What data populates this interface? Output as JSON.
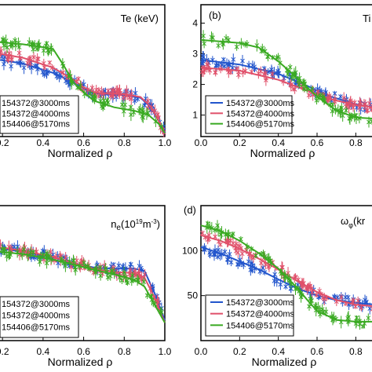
{
  "figure": {
    "xlabel": "Normalized ρ",
    "legend_entries": [
      "154372@3000ms",
      "154372@4000ms",
      "154406@5170ms"
    ],
    "colors": {
      "s3000": "#2255cc",
      "s4000": "#e0506a",
      "s5170": "#3aaa22"
    }
  },
  "panels": [
    {
      "id": "a",
      "title": "Te (keV)",
      "tag": "",
      "xticks": [
        "0.2",
        "0.4",
        "0.6",
        "0.8",
        "1.0"
      ],
      "yticks": [],
      "xlabel": "Normalized ρ"
    },
    {
      "id": "b",
      "title": "Ti",
      "tag": "(b)",
      "xticks": [
        "0.0",
        "0.2",
        "0.4",
        "0.6",
        "0.8"
      ],
      "yticks": [
        "1",
        "2",
        "3",
        "4"
      ],
      "xlabel": "Normalized ρ"
    },
    {
      "id": "c",
      "title": "n",
      "title_sub": "e",
      "title_unit": "(10",
      "title_exp": "19",
      "title_unit2": "m",
      "title_exp2": "-3",
      "title_end": ")",
      "tag": "",
      "xticks": [
        "0.2",
        "0.4",
        "0.6",
        "0.8",
        "1.0"
      ],
      "yticks": [],
      "xlabel": "Normalized ρ"
    },
    {
      "id": "d",
      "title": "ω",
      "title_sub": "φ",
      "title_unit": "(kr",
      "tag": "(d)",
      "xticks": [
        "0.0",
        "0.2",
        "0.4",
        "0.6",
        "0.8"
      ],
      "yticks": [
        "50",
        "100"
      ],
      "xlabel": "Normalized ρ"
    }
  ],
  "chart_data": [
    {
      "type": "scatter",
      "title": "Te (keV)",
      "xlabel": "Normalized ρ",
      "ylabel": "",
      "xlim": [
        0.18,
        1.0
      ],
      "ylim": [
        0,
        4.6
      ],
      "series": [
        {
          "name": "154372@3000ms",
          "fit": [
            [
              0.18,
              2.68
            ],
            [
              0.3,
              2.55
            ],
            [
              0.45,
              2.22
            ],
            [
              0.55,
              1.88
            ],
            [
              0.6,
              1.68
            ],
            [
              0.65,
              1.52
            ],
            [
              0.7,
              1.48
            ],
            [
              0.8,
              1.45
            ],
            [
              0.88,
              1.35
            ],
            [
              0.93,
              1.05
            ],
            [
              0.97,
              0.55
            ],
            [
              1.0,
              0.1
            ]
          ]
        },
        {
          "name": "154372@4000ms",
          "fit": [
            [
              0.18,
              2.9
            ],
            [
              0.3,
              2.75
            ],
            [
              0.45,
              2.4
            ],
            [
              0.55,
              1.98
            ],
            [
              0.6,
              1.72
            ],
            [
              0.65,
              1.55
            ],
            [
              0.7,
              1.5
            ],
            [
              0.8,
              1.48
            ],
            [
              0.88,
              1.38
            ],
            [
              0.93,
              1.05
            ],
            [
              0.97,
              0.55
            ],
            [
              1.0,
              0.1
            ]
          ]
        },
        {
          "name": "154406@5170ms",
          "fit": [
            [
              0.18,
              3.3
            ],
            [
              0.3,
              3.22
            ],
            [
              0.4,
              3.12
            ],
            [
              0.45,
              3.05
            ],
            [
              0.5,
              2.5
            ],
            [
              0.55,
              1.88
            ],
            [
              0.6,
              1.55
            ],
            [
              0.65,
              1.25
            ],
            [
              0.75,
              1.02
            ],
            [
              0.85,
              0.9
            ],
            [
              0.92,
              0.75
            ],
            [
              0.97,
              0.45
            ],
            [
              1.0,
              0.12
            ]
          ]
        }
      ]
    },
    {
      "type": "scatter",
      "title": "Ti",
      "xlabel": "Normalized ρ",
      "ylabel": "",
      "xlim": [
        0.0,
        0.9
      ],
      "ylim": [
        0.3,
        4.6
      ],
      "series": [
        {
          "name": "154372@3000ms",
          "fit": [
            [
              0.0,
              2.8
            ],
            [
              0.2,
              2.65
            ],
            [
              0.4,
              2.35
            ],
            [
              0.55,
              1.95
            ],
            [
              0.65,
              1.65
            ],
            [
              0.8,
              1.35
            ],
            [
              0.9,
              1.25
            ]
          ]
        },
        {
          "name": "154372@4000ms",
          "fit": [
            [
              0.0,
              2.55
            ],
            [
              0.2,
              2.45
            ],
            [
              0.4,
              2.15
            ],
            [
              0.55,
              1.8
            ],
            [
              0.65,
              1.55
            ],
            [
              0.8,
              1.33
            ],
            [
              0.9,
              1.25
            ]
          ]
        },
        {
          "name": "154406@5170ms",
          "fit": [
            [
              0.0,
              3.45
            ],
            [
              0.2,
              3.35
            ],
            [
              0.3,
              3.2
            ],
            [
              0.4,
              2.75
            ],
            [
              0.5,
              2.2
            ],
            [
              0.6,
              1.6
            ],
            [
              0.7,
              1.15
            ],
            [
              0.8,
              0.92
            ],
            [
              0.9,
              0.88
            ]
          ]
        }
      ]
    },
    {
      "type": "scatter",
      "title": "ne(10^19 m^-3)",
      "xlabel": "Normalized ρ",
      "ylabel": "",
      "xlim": [
        0.18,
        1.0
      ],
      "ylim": [
        0,
        6.0
      ],
      "series": [
        {
          "name": "154372@3000ms",
          "fit": [
            [
              0.18,
              4.1
            ],
            [
              0.3,
              3.95
            ],
            [
              0.45,
              3.7
            ],
            [
              0.55,
              3.45
            ],
            [
              0.65,
              3.25
            ],
            [
              0.75,
              3.2
            ],
            [
              0.85,
              3.2
            ],
            [
              0.9,
              3.1
            ],
            [
              0.95,
              2.1
            ],
            [
              1.0,
              0.9
            ]
          ]
        },
        {
          "name": "154372@4000ms",
          "fit": [
            [
              0.18,
              4.15
            ],
            [
              0.3,
              4.0
            ],
            [
              0.45,
              3.72
            ],
            [
              0.55,
              3.45
            ],
            [
              0.65,
              3.2
            ],
            [
              0.75,
              3.05
            ],
            [
              0.85,
              3.0
            ],
            [
              0.9,
              2.8
            ],
            [
              0.95,
              1.9
            ],
            [
              1.0,
              0.8
            ]
          ]
        },
        {
          "name": "154406@5170ms",
          "fit": [
            [
              0.18,
              3.95
            ],
            [
              0.3,
              3.85
            ],
            [
              0.45,
              3.6
            ],
            [
              0.55,
              3.38
            ],
            [
              0.65,
              3.15
            ],
            [
              0.75,
              2.95
            ],
            [
              0.85,
              2.7
            ],
            [
              0.9,
              2.4
            ],
            [
              0.95,
              1.6
            ],
            [
              1.0,
              0.8
            ]
          ]
        }
      ]
    },
    {
      "type": "scatter",
      "title": "ωφ(kr",
      "xlabel": "Normalized ρ",
      "ylabel": "",
      "xlim": [
        0.0,
        0.9
      ],
      "ylim": [
        0,
        150
      ],
      "series": [
        {
          "name": "154372@3000ms",
          "fit": [
            [
              0.0,
              104
            ],
            [
              0.1,
              97
            ],
            [
              0.2,
              88
            ],
            [
              0.3,
              79
            ],
            [
              0.4,
              68
            ],
            [
              0.5,
              58
            ],
            [
              0.6,
              50
            ],
            [
              0.7,
              45
            ],
            [
              0.8,
              42
            ],
            [
              0.9,
              40
            ]
          ]
        },
        {
          "name": "154372@4000ms",
          "fit": [
            [
              0.0,
              117
            ],
            [
              0.1,
              111
            ],
            [
              0.2,
              102
            ],
            [
              0.3,
              91
            ],
            [
              0.4,
              79
            ],
            [
              0.5,
              66
            ],
            [
              0.6,
              54
            ],
            [
              0.7,
              45
            ],
            [
              0.8,
              40
            ],
            [
              0.9,
              38
            ]
          ]
        },
        {
          "name": "154406@5170ms",
          "fit": [
            [
              0.0,
              128
            ],
            [
              0.1,
              122
            ],
            [
              0.2,
              111
            ],
            [
              0.3,
              97
            ],
            [
              0.4,
              80
            ],
            [
              0.5,
              58
            ],
            [
              0.55,
              45
            ],
            [
              0.6,
              33
            ],
            [
              0.7,
              23
            ],
            [
              0.8,
              21
            ],
            [
              0.9,
              21
            ]
          ]
        }
      ]
    }
  ]
}
